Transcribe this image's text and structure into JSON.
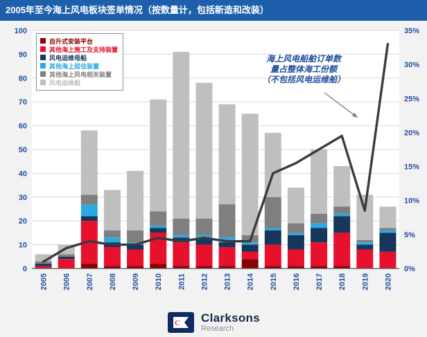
{
  "title": "2005年至今海上风电板块签单情况（按数量计，包括新造和改装）",
  "chart_data": {
    "type": "bar",
    "subtype": "stacked-bars-with-line-overlay",
    "title": "2005年至今海上风电板块签单情况（按数量计，包括新造和改装）",
    "categories": [
      "2005",
      "2006",
      "2007",
      "2008",
      "2009",
      "2010",
      "2011",
      "2012",
      "2013",
      "2014",
      "2015",
      "2016",
      "2017",
      "2018",
      "2019",
      "2020"
    ],
    "series": [
      {
        "name": "自升式安装平台",
        "color": "#8B0000",
        "values": [
          0,
          0,
          2,
          1,
          1,
          2,
          1,
          1,
          1,
          4,
          1,
          1,
          1,
          1,
          0,
          0
        ]
      },
      {
        "name": "其他海上施工及支持装置",
        "color": "#E8112D",
        "values": [
          1,
          4,
          18,
          8,
          7,
          13,
          10,
          9,
          8,
          3,
          9,
          7,
          10,
          14,
          8,
          7
        ]
      },
      {
        "name": "风电运维母船",
        "color": "#16365C",
        "values": [
          1,
          1,
          2,
          2,
          2,
          2,
          2,
          3,
          2,
          3,
          6,
          6,
          6,
          7,
          2,
          8
        ]
      },
      {
        "name": "其他海上居住装置",
        "color": "#2EA8E0",
        "values": [
          0,
          0,
          5,
          2,
          1,
          1,
          1,
          1,
          2,
          1,
          1,
          1,
          2,
          1,
          1,
          1
        ]
      },
      {
        "name": "其他海上风电相关装置",
        "color": "#7F7F7F",
        "values": [
          1,
          1,
          4,
          3,
          5,
          6,
          7,
          7,
          14,
          3,
          13,
          4,
          4,
          3,
          1,
          1
        ]
      },
      {
        "name": "风电运维船",
        "color": "#BFBFBF",
        "values": [
          3,
          4,
          27,
          17,
          25,
          47,
          70,
          57,
          42,
          51,
          27,
          15,
          27,
          17,
          19,
          9
        ]
      }
    ],
    "line": {
      "name": "海上风电船舶订单数量占整体海工份额（不包括风电运维船）",
      "color": "#3B3B3B",
      "axis": "right",
      "values": [
        1,
        3,
        4,
        3.5,
        3.5,
        4.5,
        4,
        4.5,
        4,
        4,
        14,
        15.5,
        17.5,
        19.5,
        8.5,
        33
      ]
    },
    "left_axis": {
      "min": 0,
      "max": 100,
      "step": 10
    },
    "right_axis": {
      "min": 0,
      "max": 35,
      "step": 5,
      "suffix": "%"
    },
    "grid": true,
    "legend_position": "top-left-inside"
  },
  "annotation": {
    "line1": "海上风电船舶订单数",
    "line2": "量占整体海工份额",
    "line3": "（不包括风电运维船）"
  },
  "footer": {
    "brand": "Clarksons",
    "sub": "Research"
  },
  "colors": {
    "title_bg": "#1E5FAC",
    "axis_text": "#1F4E9C",
    "grid": "#D9D9D9",
    "plot_bg": "#FFFFFF",
    "annotation_text": "#1F4E9C",
    "logo_navy": "#0E2B63",
    "logo_accent": "#E03C31"
  }
}
